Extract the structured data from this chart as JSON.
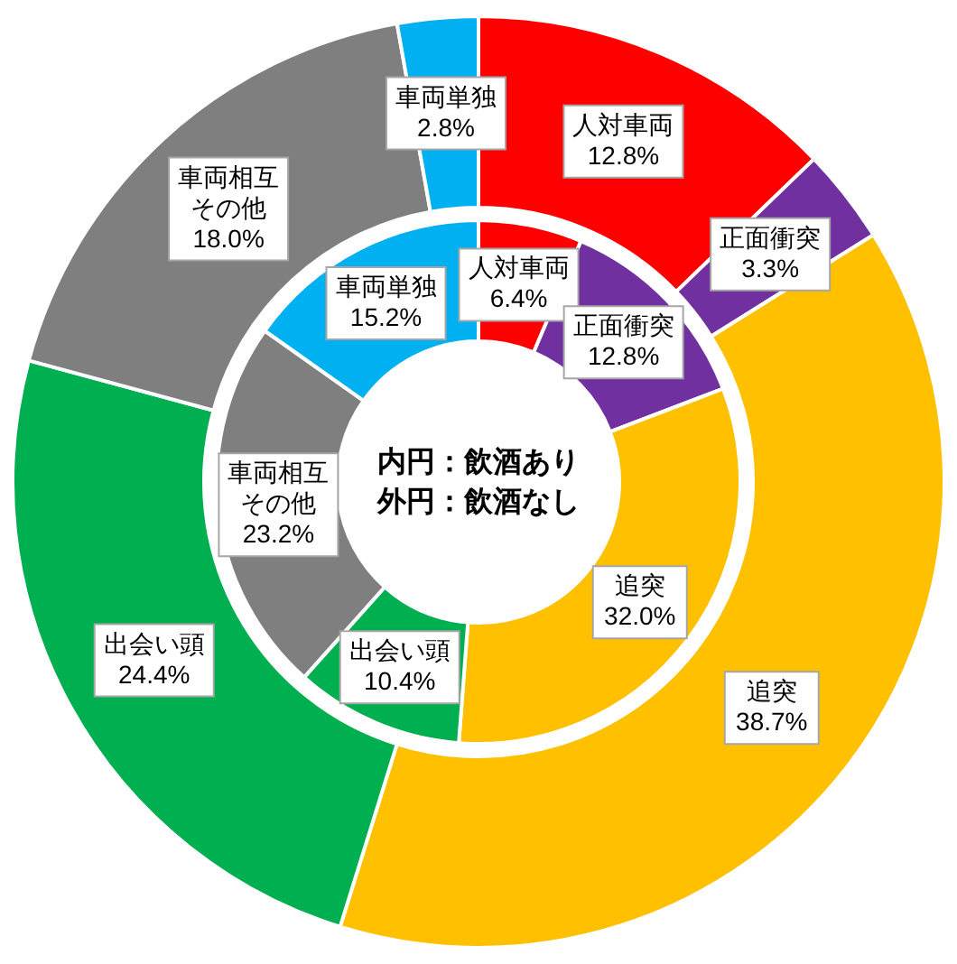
{
  "chart_data": {
    "type": "donut",
    "categories": [
      "人対車両",
      "正面衝突",
      "追突",
      "出会い頭",
      "車両相互その他",
      "車両単独"
    ],
    "colors": [
      "#ff0000",
      "#7030a0",
      "#ffc000",
      "#00b050",
      "#7f7f7f",
      "#00b0f0"
    ],
    "series": [
      {
        "values": [
          6.4,
          12.8,
          32.0,
          10.4,
          23.2,
          15.2
        ],
        "value_labels": [
          "6.4%",
          "12.8%",
          "32.0%",
          "10.4%",
          "23.2%",
          "15.2%"
        ]
      },
      {
        "values": [
          12.8,
          3.3,
          38.7,
          24.4,
          18.0,
          2.8
        ],
        "value_labels": [
          "12.8%",
          "3.3%",
          "38.7%",
          "24.4%",
          "18.0%",
          "2.8%"
        ]
      }
    ],
    "annotations": [
      "内円：飲酒あり",
      "外円：飲酒なし"
    ],
    "legend": false
  }
}
